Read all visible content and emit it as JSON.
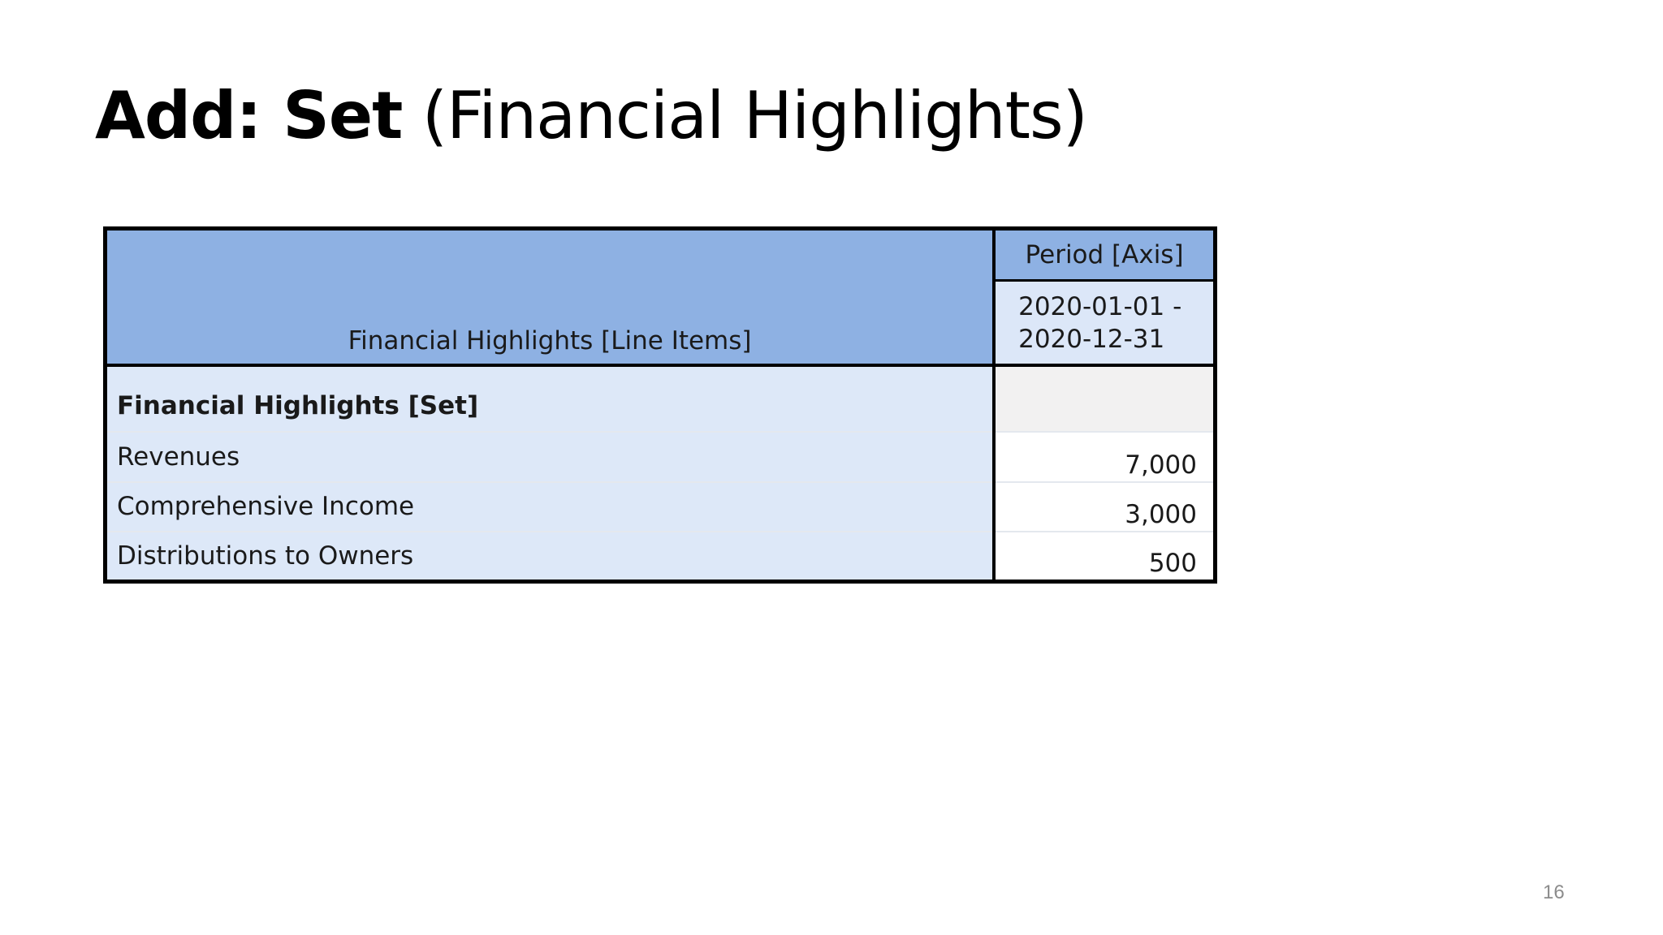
{
  "slide": {
    "title_bold": "Add: Set",
    "title_rest": " (Financial Highlights)",
    "page_number": "16"
  },
  "table": {
    "line_items_header": "Financial Highlights [Line Items]",
    "axis_header": "Period [Axis]",
    "period_line1": "2020-01-01 -",
    "period_line2": "2020-12-31",
    "set_label": "Financial Highlights [Set]",
    "rows": [
      {
        "label": "Revenues",
        "value": "7,000"
      },
      {
        "label": "Comprehensive Income",
        "value": "3,000"
      },
      {
        "label": "Distributions to Owners",
        "value": "500"
      }
    ]
  },
  "colors": {
    "header_blue": "#8eb1e3",
    "label_light_blue": "#dde8f8",
    "border": "#000000"
  }
}
